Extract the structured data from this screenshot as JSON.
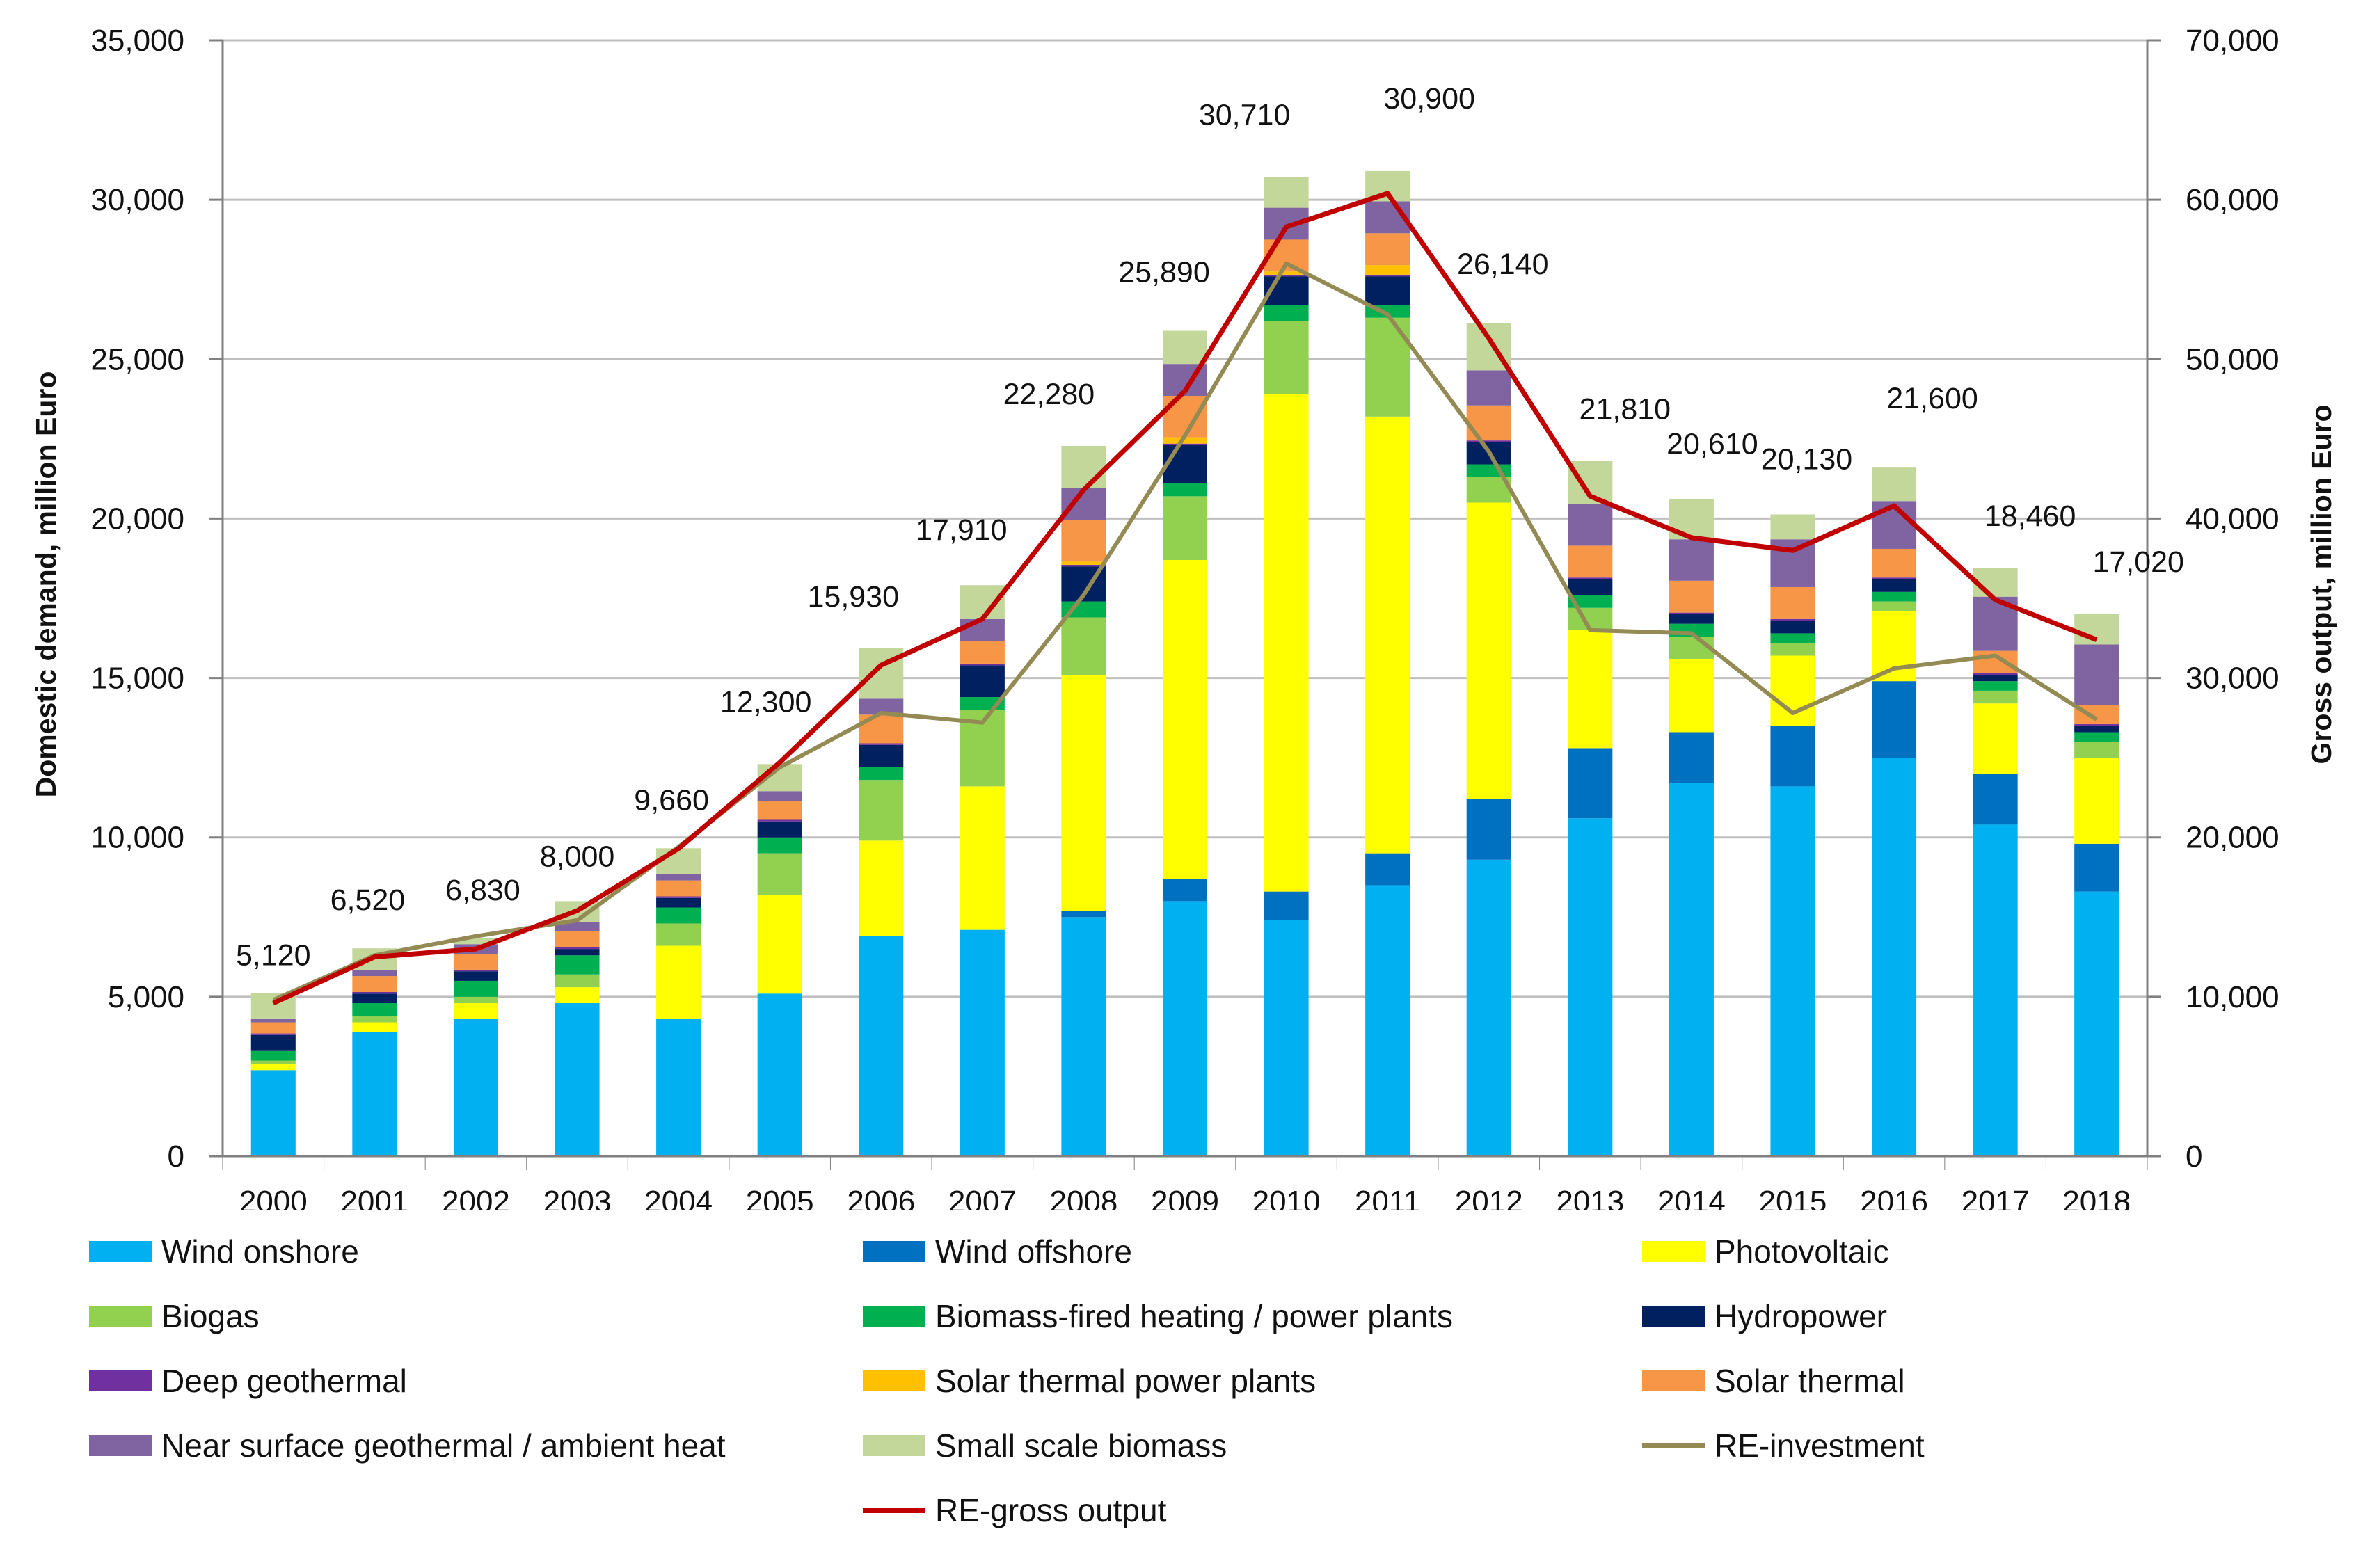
{
  "chart_data": {
    "type": "bar",
    "subtype": "stacked bar with lines on secondary axis",
    "categories": [
      "2000",
      "2001",
      "2002",
      "2003",
      "2004",
      "2005",
      "2006",
      "2007",
      "2008",
      "2009",
      "2010",
      "2011",
      "2012",
      "2013",
      "2014",
      "2015",
      "2016",
      "2017",
      "2018"
    ],
    "ylabel": "Domestic demand, million Euro",
    "y2label": "Gross output, million Euro",
    "ylim": [
      0,
      35000
    ],
    "y2lim": [
      0,
      70000
    ],
    "yticks": [
      "0",
      "5,000",
      "10,000",
      "15,000",
      "20,000",
      "25,000",
      "30,000",
      "35,000"
    ],
    "y2ticks": [
      "0",
      "10,000",
      "20,000",
      "30,000",
      "40,000",
      "50,000",
      "60,000",
      "70,000"
    ],
    "grid": true,
    "legend_position": "bottom",
    "series": [
      {
        "name": "Wind onshore",
        "color": "#00b0f0",
        "values": [
          2700,
          3900,
          4300,
          4800,
          4300,
          5100,
          6900,
          7100,
          7500,
          8000,
          7400,
          8500,
          9300,
          10600,
          11700,
          11600,
          12500,
          10400,
          8300
        ]
      },
      {
        "name": "Wind offshore",
        "color": "#0070c0",
        "values": [
          0,
          0,
          0,
          0,
          0,
          0,
          0,
          0,
          200,
          700,
          900,
          1000,
          1900,
          2200,
          1600,
          1900,
          2400,
          1600,
          1500
        ]
      },
      {
        "name": "Photovoltaic",
        "color": "#ffff00",
        "values": [
          200,
          300,
          500,
          500,
          2300,
          3100,
          3000,
          4500,
          7400,
          10000,
          15600,
          13700,
          9300,
          3700,
          2300,
          2200,
          2200,
          2200,
          2700
        ]
      },
      {
        "name": "Biogas",
        "color": "#92d050",
        "values": [
          100,
          200,
          200,
          400,
          700,
          1300,
          1900,
          2400,
          1800,
          2000,
          2300,
          3100,
          800,
          700,
          700,
          400,
          300,
          400,
          500
        ]
      },
      {
        "name": "Biomass-fired heating / power plants",
        "color": "#00b050",
        "values": [
          300,
          400,
          500,
          600,
          500,
          500,
          400,
          400,
          500,
          400,
          500,
          400,
          400,
          400,
          400,
          300,
          300,
          300,
          300
        ]
      },
      {
        "name": "Hydropower",
        "color": "#002060",
        "values": [
          500,
          300,
          300,
          200,
          300,
          500,
          700,
          1000,
          1100,
          1200,
          900,
          900,
          700,
          500,
          300,
          400,
          400,
          200,
          200
        ]
      },
      {
        "name": "Deep geothermal",
        "color": "#7030a0",
        "values": [
          50,
          50,
          50,
          50,
          50,
          50,
          50,
          50,
          50,
          50,
          50,
          50,
          50,
          50,
          50,
          50,
          50,
          50,
          50
        ]
      },
      {
        "name": "Solar thermal power plants",
        "color": "#ffc000",
        "values": [
          0,
          0,
          0,
          0,
          0,
          0,
          0,
          0,
          100,
          200,
          100,
          300,
          0,
          0,
          0,
          0,
          0,
          0,
          0
        ]
      },
      {
        "name": "Solar thermal",
        "color": "#f79646",
        "values": [
          350,
          500,
          500,
          500,
          500,
          600,
          900,
          700,
          1300,
          1300,
          1000,
          1000,
          1100,
          1000,
          1000,
          1000,
          900,
          700,
          600
        ]
      },
      {
        "name": "Near surface geothermal / ambient heat",
        "color": "#8064a2",
        "values": [
          100,
          200,
          300,
          300,
          200,
          300,
          500,
          700,
          1000,
          1000,
          1000,
          1000,
          1100,
          1300,
          1300,
          1500,
          1500,
          1700,
          1900
        ]
      },
      {
        "name": "Small scale biomass",
        "color": "#c4d79b",
        "values": [
          820,
          670,
          180,
          650,
          810,
          850,
          1580,
          1060,
          1330,
          1040,
          960,
          950,
          1490,
          1360,
          1260,
          780,
          1050,
          910,
          970
        ]
      }
    ],
    "totals": [
      5120,
      6520,
      6830,
      8000,
      9660,
      12300,
      15930,
      17910,
      22280,
      25890,
      30710,
      30900,
      26140,
      21810,
      20610,
      20130,
      21600,
      18460,
      17020
    ],
    "data_labels": [
      "5,120",
      "6,520",
      "6,830",
      "8,000",
      "9,660",
      "12,300",
      "15,930",
      "17,910",
      "22,280",
      "25,890",
      "30,710",
      "30,900",
      "26,140",
      "21,810",
      "20,610",
      "20,130",
      "21,600",
      "18,460",
      "17,020"
    ],
    "lines": [
      {
        "name": "RE-investment",
        "color": "#948a54",
        "axis": "primary",
        "values": [
          4900,
          6300,
          6900,
          7400,
          9700,
          12200,
          13900,
          13600,
          17600,
          22600,
          28000,
          26400,
          22100,
          16500,
          16400,
          13900,
          15300,
          15700,
          13700
        ]
      },
      {
        "name": "RE-gross output",
        "color": "#c00000",
        "axis": "secondary",
        "values": [
          9600,
          12500,
          13000,
          15400,
          19300,
          24700,
          30800,
          33700,
          41800,
          48000,
          58300,
          60400,
          51300,
          41400,
          38800,
          38000,
          40800,
          34900,
          32400
        ]
      }
    ]
  }
}
